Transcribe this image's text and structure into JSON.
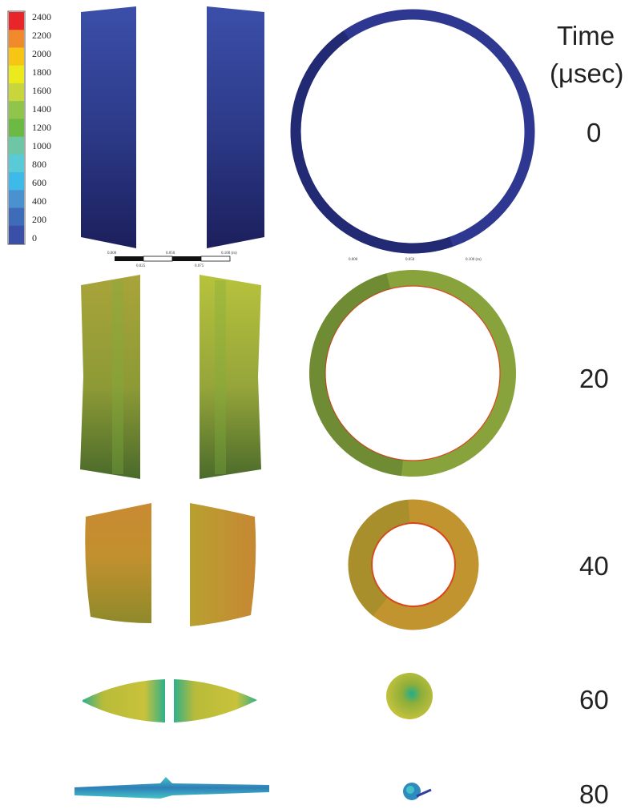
{
  "legend": {
    "ticks": [
      "2400",
      "2200",
      "2000",
      "1800",
      "1600",
      "1400",
      "1200",
      "1000",
      "800",
      "600",
      "400",
      "200",
      "0"
    ],
    "colors": [
      "#e8262a",
      "#f08a2c",
      "#f7c514",
      "#eaea1c",
      "#c8d63c",
      "#8fc54a",
      "#6cb944",
      "#6dc6a4",
      "#59cbd6",
      "#3db9ea",
      "#4a91cf",
      "#3f6cb8",
      "#3a4fa8"
    ]
  },
  "time_header": {
    "line1": "Time",
    "line2": "(μsec)"
  },
  "frames": [
    {
      "time": "0"
    },
    {
      "time": "20"
    },
    {
      "time": "40"
    },
    {
      "time": "60"
    },
    {
      "time": "80"
    }
  ],
  "scale_bar_side": {
    "labels": [
      "0.000",
      "0.050",
      "0.100 (m)"
    ],
    "sub_labels": [
      "0.025",
      "0.075"
    ]
  },
  "scale_bar_top": {
    "labels": [
      "0.000",
      "0.050",
      "0.100 (m)"
    ]
  },
  "colors": {
    "t0_light": "#3b4faa",
    "t0_dark": "#1c1f5c",
    "t20_top": "#9aa83a",
    "t20_bottom": "#4f6f2a",
    "t20_stripe": "#7fae3c",
    "t40_orange": "#d69032",
    "t40_olive": "#9a9a30",
    "t40_inner": "#d8461c",
    "t60_yellow": "#c5c23a",
    "t60_green": "#1fae8a",
    "t80_blue": "#2f7fb8",
    "t80_cyan": "#43c2c6"
  }
}
